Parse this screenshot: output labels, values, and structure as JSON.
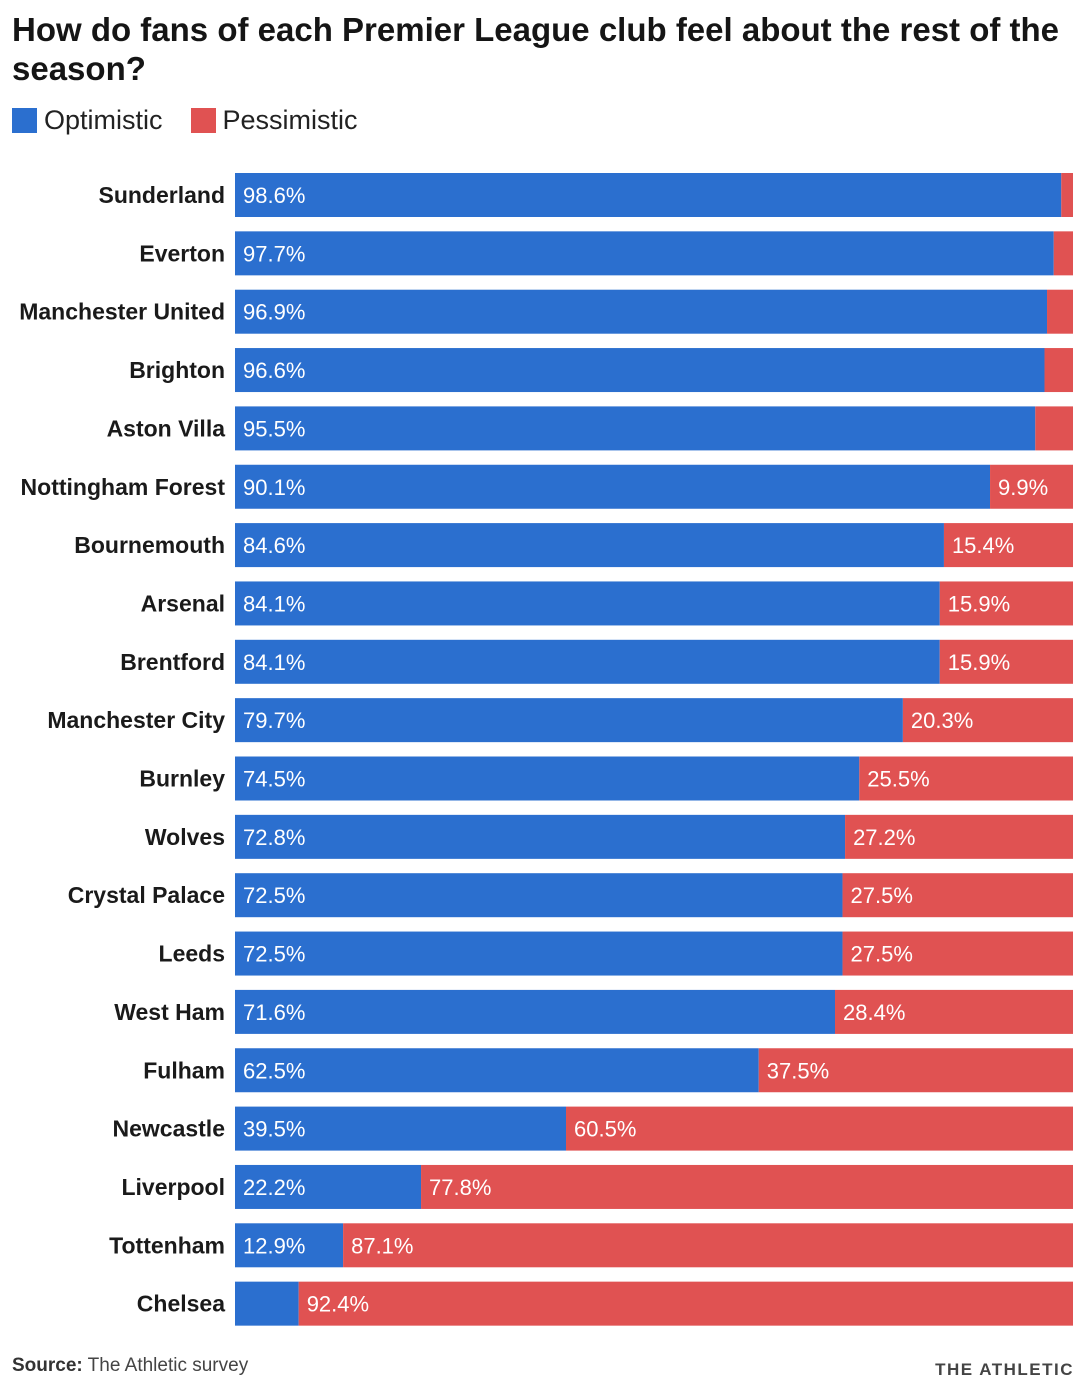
{
  "colors": {
    "optimistic": "#2b6fcf",
    "pessimistic": "#e05252"
  },
  "chart_data": {
    "type": "bar",
    "orientation": "horizontal",
    "stacked": true,
    "title": "How do fans of each Premier League club feel about the rest of the season?",
    "legend": {
      "placement": "top-left",
      "items": [
        "Optimistic",
        "Pessimistic"
      ]
    },
    "xlim": [
      0,
      100
    ],
    "grid": false,
    "categories": [
      "Sunderland",
      "Everton",
      "Manchester United",
      "Brighton",
      "Aston Villa",
      "Nottingham Forest",
      "Bournemouth",
      "Arsenal",
      "Brentford",
      "Manchester City",
      "Burnley",
      "Wolves",
      "Crystal Palace",
      "Leeds",
      "West Ham",
      "Fulham",
      "Newcastle",
      "Liverpool",
      "Tottenham",
      "Chelsea"
    ],
    "series": [
      {
        "name": "Optimistic",
        "values": [
          98.6,
          97.7,
          96.9,
          96.6,
          95.5,
          90.1,
          84.6,
          84.1,
          84.1,
          79.7,
          74.5,
          72.8,
          72.5,
          72.5,
          71.6,
          62.5,
          39.5,
          22.2,
          12.9,
          7.6
        ],
        "labels": [
          "98.6%",
          "97.7%",
          "96.9%",
          "96.6%",
          "95.5%",
          "90.1%",
          "84.6%",
          "84.1%",
          "84.1%",
          "79.7%",
          "74.5%",
          "72.8%",
          "72.5%",
          "72.5%",
          "71.6%",
          "62.5%",
          "39.5%",
          "22.2%",
          "12.9%",
          ""
        ]
      },
      {
        "name": "Pessimistic",
        "values": [
          1.4,
          2.3,
          3.1,
          3.4,
          4.5,
          9.9,
          15.4,
          15.9,
          15.9,
          20.3,
          25.5,
          27.2,
          27.5,
          27.5,
          28.4,
          37.5,
          60.5,
          77.8,
          87.1,
          92.4
        ],
        "labels": [
          "",
          "",
          "",
          "",
          "",
          "9.9%",
          "15.4%",
          "15.9%",
          "15.9%",
          "20.3%",
          "25.5%",
          "27.2%",
          "27.5%",
          "27.5%",
          "28.4%",
          "37.5%",
          "60.5%",
          "77.8%",
          "87.1%",
          "92.4%"
        ]
      }
    ]
  },
  "footer": {
    "source_label": "Source:",
    "source_text": " The Athletic survey",
    "brand": "THE ATHLETIC"
  }
}
